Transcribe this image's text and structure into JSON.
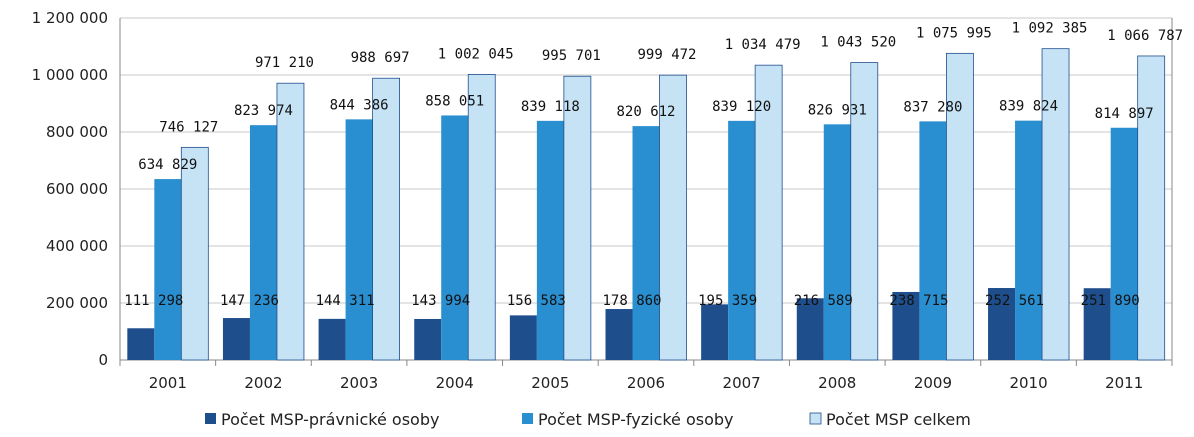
{
  "chart_data": {
    "type": "bar",
    "categories": [
      "2001",
      "2002",
      "2003",
      "2004",
      "2005",
      "2006",
      "2007",
      "2008",
      "2009",
      "2010",
      "2011"
    ],
    "series": [
      {
        "name": "Počet MSP-právnické osoby",
        "color": "#1f4e8c",
        "values": [
          111298,
          147236,
          144311,
          143994,
          156583,
          178860,
          195359,
          216589,
          238715,
          252561,
          251890
        ],
        "labels": [
          "111 298",
          "147 236",
          "144 311",
          "143 994",
          "156 583",
          "178 860",
          "195 359",
          "216 589",
          "238 715",
          "252 561",
          "251 890"
        ]
      },
      {
        "name": "Počet MSP-fyzické osoby",
        "color": "#2a8fd0",
        "values": [
          634829,
          823974,
          844386,
          858051,
          839118,
          820612,
          839120,
          826931,
          837280,
          839824,
          814897
        ],
        "labels": [
          "634 829",
          "823 974",
          "844 386",
          "858 051",
          "839 118",
          "820 612",
          "839 120",
          "826 931",
          "837 280",
          "839 824",
          "814 897"
        ]
      },
      {
        "name": "Počet MSP celkem",
        "color": "#c6e3f5",
        "values": [
          746127,
          971210,
          988697,
          1002045,
          995701,
          999472,
          1034479,
          1043520,
          1075995,
          1092385,
          1066787
        ],
        "labels": [
          "746 127",
          "971 210",
          "988 697",
          "1 002 045",
          "995 701",
          "999 472",
          "1 034 479",
          "1 043 520",
          "1 075 995",
          "1 092 385",
          "1 066 787"
        ]
      }
    ],
    "yticks": [
      0,
      200000,
      400000,
      600000,
      800000,
      1000000,
      1200000
    ],
    "ytick_labels": [
      "0",
      "200 000",
      "400 000",
      "600 000",
      "800 000",
      "1 000 000",
      "1 200 000"
    ],
    "ylim": [
      0,
      1200000
    ],
    "grid": true,
    "legend_position": "bottom",
    "colors": {
      "grid": "#c8c8c8",
      "axis": "#888888",
      "bar_outline": "#ffffff",
      "light_bar_outline": "#1f4e8c"
    }
  }
}
